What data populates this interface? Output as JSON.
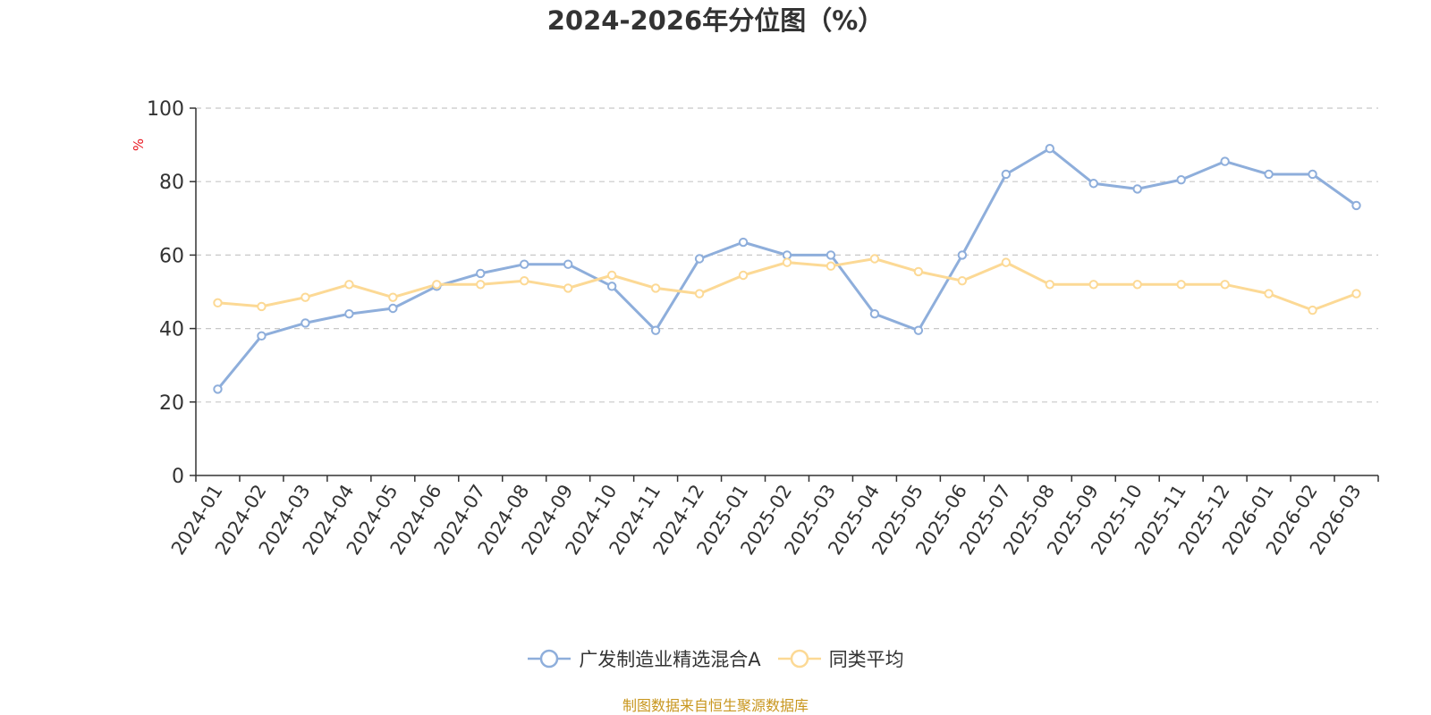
{
  "chart_data": {
    "type": "line",
    "title": "2024-2026年分位图（%）",
    "ylabel": "%",
    "xlabel": "",
    "ylim": [
      0,
      100
    ],
    "yticks": [
      0,
      20,
      40,
      60,
      80,
      100
    ],
    "grid": true,
    "legend_position": "bottom",
    "categories": [
      "2024-01",
      "2024-02",
      "2024-03",
      "2024-04",
      "2024-05",
      "2024-06",
      "2024-07",
      "2024-08",
      "2024-09",
      "2024-10",
      "2024-11",
      "2024-12",
      "2025-01",
      "2025-02",
      "2025-03",
      "2025-04",
      "2025-05",
      "2025-06",
      "2025-07",
      "2025-08",
      "2025-09",
      "2025-10",
      "2025-11",
      "2025-12",
      "2026-01",
      "2026-02",
      "2026-03"
    ],
    "series": [
      {
        "name": "广发制造业精选混合A",
        "color": "#8eaedb",
        "values": [
          23.5,
          38,
          41.5,
          44,
          45.5,
          51.5,
          55,
          57.5,
          57.5,
          51.5,
          39.5,
          59,
          63.5,
          60,
          60,
          44,
          39.5,
          60,
          82,
          89,
          79.5,
          78,
          80.5,
          85.5,
          82,
          82,
          73.5
        ]
      },
      {
        "name": "同类平均",
        "color": "#fcd995",
        "values": [
          47,
          46,
          48.5,
          52,
          48.5,
          52,
          52,
          53,
          51,
          54.5,
          51,
          49.5,
          54.5,
          58,
          57,
          59,
          55.5,
          53,
          58,
          52,
          52,
          52,
          52,
          52,
          49.5,
          45,
          49.5
        ]
      }
    ]
  },
  "source_note": "制图数据来自恒生聚源数据库"
}
